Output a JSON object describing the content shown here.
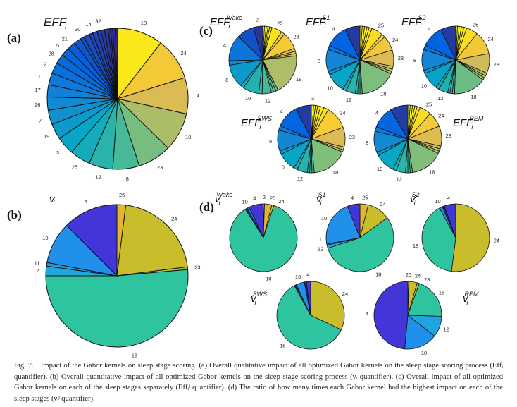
{
  "panels": {
    "a": {
      "letter": "(a)",
      "title": {
        "base": "EFF",
        "sub": "i",
        "sup": ""
      }
    },
    "b": {
      "letter": "(b)",
      "title": {
        "base": "v",
        "sub": "i",
        "sup": ""
      }
    },
    "c": {
      "letter": "(c)",
      "titles": {
        "wake": {
          "base": "EFF",
          "sub": "i",
          "sup": "Wake"
        },
        "s1": {
          "base": "EFF",
          "sub": "i",
          "sup": "S1"
        },
        "s2": {
          "base": "EFF",
          "sub": "i",
          "sup": "S2"
        },
        "sws": {
          "base": "EFF",
          "sub": "i",
          "sup": "SWS"
        },
        "rem": {
          "base": "EFF",
          "sub": "i",
          "sup": "REM"
        }
      }
    },
    "d": {
      "letter": "(d)",
      "titles": {
        "wake": {
          "base": "v",
          "sub": "i",
          "sup": "Wake"
        },
        "s1": {
          "base": "v",
          "sub": "i",
          "sup": "S1"
        },
        "s2": {
          "base": "v",
          "sub": "i",
          "sup": "S2"
        },
        "sws": {
          "base": "v",
          "sub": "i",
          "sup": "SWS"
        },
        "rem": {
          "base": "v",
          "sub": "i",
          "sup": "REM"
        }
      }
    }
  },
  "kernel_colors": {
    "18": "#2fc4a0",
    "24": "#c9bd2c",
    "25": "#e3b52c",
    "23": "#b0c23a",
    "2": "#f2e22a",
    "4": "#4236d9",
    "10": "#2090ea",
    "12": "#1fa6df",
    "11": "#2a9ad8",
    "8": "#2e7de8",
    "": "#1b2a6a"
  },
  "chart_data": [
    {
      "id": "a",
      "type": "pie",
      "title": "EFF_i",
      "coloring": "gradient",
      "slices": [
        [
          "18",
          38
        ],
        [
          "24",
          35
        ],
        [
          "4",
          30
        ],
        [
          "10",
          32
        ],
        [
          "23",
          28
        ],
        [
          "8",
          22
        ],
        [
          "12",
          20
        ],
        [
          "25",
          17
        ],
        [
          "3",
          15
        ],
        [
          "19",
          13
        ],
        [
          "7",
          12
        ],
        [
          "26",
          11
        ],
        [
          "17",
          10
        ],
        [
          "11",
          10
        ],
        [
          "2",
          9
        ],
        [
          "28",
          8
        ],
        [
          "5",
          7
        ],
        [
          "21",
          7
        ],
        [
          "30",
          6
        ],
        [
          "",
          3
        ],
        [
          "14",
          5
        ],
        [
          "",
          3
        ],
        [
          "32",
          4
        ],
        [
          "",
          3
        ],
        [
          "",
          3
        ],
        [
          "",
          3
        ],
        [
          "",
          2
        ],
        [
          "",
          2
        ],
        [
          "",
          2
        ],
        [
          "",
          2
        ]
      ]
    },
    {
      "id": "b",
      "type": "pie",
      "title": "v_i",
      "coloring": "kernel",
      "slices": [
        [
          "25",
          2
        ],
        [
          "24",
          21
        ],
        [
          "23",
          0.6
        ],
        [
          "18",
          51.4
        ],
        [
          "12",
          2.2
        ],
        [
          "11",
          0.8
        ],
        [
          "10",
          9.5
        ],
        [
          "4",
          12.5
        ]
      ]
    },
    {
      "id": "c-wake",
      "type": "pie",
      "coloring": "gradient",
      "slices": [
        [
          "",
          3
        ],
        [
          "",
          3
        ],
        [
          "",
          3
        ],
        [
          "",
          3
        ],
        [
          "",
          4
        ],
        [
          "25",
          18
        ],
        [
          "",
          6
        ],
        [
          "23",
          30
        ],
        [
          "",
          5
        ],
        [
          "",
          4
        ],
        [
          "",
          4
        ],
        [
          "18",
          70
        ],
        [
          "",
          4
        ],
        [
          "",
          4
        ],
        [
          "",
          4
        ],
        [
          "12",
          16
        ],
        [
          "",
          6
        ],
        [
          "10",
          28
        ],
        [
          "",
          6
        ],
        [
          "8",
          40
        ],
        [
          "",
          8
        ],
        [
          "4",
          45
        ],
        [
          "",
          30
        ],
        [
          "2",
          16
        ]
      ]
    },
    {
      "id": "c-s1",
      "type": "pie",
      "coloring": "gradient",
      "slices": [
        [
          "",
          4
        ],
        [
          "",
          4
        ],
        [
          "",
          4
        ],
        [
          "",
          4
        ],
        [
          "",
          5
        ],
        [
          "25",
          20
        ],
        [
          "",
          6
        ],
        [
          "24",
          26
        ],
        [
          "23",
          28
        ],
        [
          "",
          5
        ],
        [
          "",
          4
        ],
        [
          "",
          4
        ],
        [
          "18",
          62
        ],
        [
          "",
          4
        ],
        [
          "",
          4
        ],
        [
          "",
          4
        ],
        [
          "12",
          16
        ],
        [
          "",
          6
        ],
        [
          "10",
          34
        ],
        [
          "",
          6
        ],
        [
          "8",
          38
        ],
        [
          "",
          8
        ],
        [
          "4",
          38
        ],
        [
          "",
          26
        ]
      ]
    },
    {
      "id": "c-s2",
      "type": "pie",
      "coloring": "gradient",
      "slices": [
        [
          "",
          3
        ],
        [
          "",
          3
        ],
        [
          "",
          4
        ],
        [
          "",
          4
        ],
        [
          "",
          5
        ],
        [
          "25",
          20
        ],
        [
          "24",
          40
        ],
        [
          "23",
          34
        ],
        [
          "",
          5
        ],
        [
          "",
          4
        ],
        [
          "",
          4
        ],
        [
          "18",
          56
        ],
        [
          "",
          4
        ],
        [
          "",
          4
        ],
        [
          "",
          4
        ],
        [
          "12",
          16
        ],
        [
          "",
          6
        ],
        [
          "10",
          30
        ],
        [
          "",
          6
        ],
        [
          "8",
          36
        ],
        [
          "",
          8
        ],
        [
          "4",
          38
        ],
        [
          "",
          26
        ]
      ]
    },
    {
      "id": "c-sws",
      "type": "pie",
      "coloring": "gradient",
      "slices": [
        [
          "3",
          4
        ],
        [
          "",
          3
        ],
        [
          "",
          4
        ],
        [
          "",
          5
        ],
        [
          "",
          6
        ],
        [
          "",
          8
        ],
        [
          "24",
          40
        ],
        [
          "23",
          34
        ],
        [
          "",
          5
        ],
        [
          "",
          4
        ],
        [
          "18",
          62
        ],
        [
          "",
          4
        ],
        [
          "",
          4
        ],
        [
          "",
          4
        ],
        [
          "12",
          18
        ],
        [
          "",
          6
        ],
        [
          "10",
          32
        ],
        [
          "",
          6
        ],
        [
          "8",
          36
        ],
        [
          "",
          8
        ],
        [
          "4",
          40
        ],
        [
          "",
          27
        ]
      ]
    },
    {
      "id": "c-rem",
      "type": "pie",
      "coloring": "gradient",
      "slices": [
        [
          "",
          4
        ],
        [
          "",
          4
        ],
        [
          "",
          4
        ],
        [
          "",
          4
        ],
        [
          "",
          5
        ],
        [
          "25",
          20
        ],
        [
          "24",
          26
        ],
        [
          "23",
          34
        ],
        [
          "",
          5
        ],
        [
          "",
          4
        ],
        [
          "",
          4
        ],
        [
          "18",
          56
        ],
        [
          "",
          4
        ],
        [
          "",
          4
        ],
        [
          "",
          4
        ],
        [
          "12",
          16
        ],
        [
          "",
          6
        ],
        [
          "10",
          34
        ],
        [
          "",
          6
        ],
        [
          "8",
          36
        ],
        [
          "",
          8
        ],
        [
          "4",
          38
        ],
        [
          "",
          30
        ]
      ]
    },
    {
      "id": "d-wake",
      "type": "pie",
      "coloring": "kernel",
      "slices": [
        [
          "2",
          0.5
        ],
        [
          "25",
          3.5
        ],
        [
          "24",
          1
        ],
        [
          "18",
          86
        ],
        [
          "",
          1
        ],
        [
          "10",
          1
        ],
        [
          "4",
          7
        ]
      ]
    },
    {
      "id": "d-s1",
      "type": "pie",
      "coloring": "kernel",
      "slices": [
        [
          "25",
          4
        ],
        [
          "24",
          11
        ],
        [
          "18",
          55
        ],
        [
          "12",
          1.5
        ],
        [
          "11",
          0.5
        ],
        [
          "10",
          22
        ],
        [
          "4",
          6
        ]
      ]
    },
    {
      "id": "d-s2",
      "type": "pie",
      "coloring": "kernel",
      "slices": [
        [
          "24",
          52
        ],
        [
          "18",
          40
        ],
        [
          "10",
          1.5
        ],
        [
          "",
          1
        ],
        [
          "4",
          5.5
        ]
      ]
    },
    {
      "id": "d-sws",
      "type": "pie",
      "coloring": "kernel",
      "slices": [
        [
          "24",
          32
        ],
        [
          "18",
          60
        ],
        [
          "",
          1
        ],
        [
          "10",
          4
        ],
        [
          "",
          1
        ],
        [
          "4",
          2
        ]
      ]
    },
    {
      "id": "d-rem",
      "type": "pie",
      "coloring": "kernel",
      "slices": [
        [
          "25",
          0.5
        ],
        [
          "24",
          4
        ],
        [
          "23",
          1
        ],
        [
          "18",
          20
        ],
        [
          "12",
          10
        ],
        [
          "10",
          16
        ],
        [
          "4",
          48.5
        ]
      ]
    }
  ],
  "caption": {
    "fig": "Fig. 7.",
    "text": "Impact of the Gabor kernels on sleep stage scoring. (a) Overall qualitative impact of all optimized Gabor kernels on the sleep stage scoring process (Effᵢ quantifier). (b) Overall quantitative impact of all optimized Gabor kernels on the sleep stage scoring process (νᵢ quantifier). (c) Overall impact of all optimized Gabor kernels on each of the sleep stages separately (Effᵢʲ quantifier). (d) The ratio of how many times each Gabor kernel had the highest impact on each of the sleep stages (νᵢʲ quantifier)."
  }
}
